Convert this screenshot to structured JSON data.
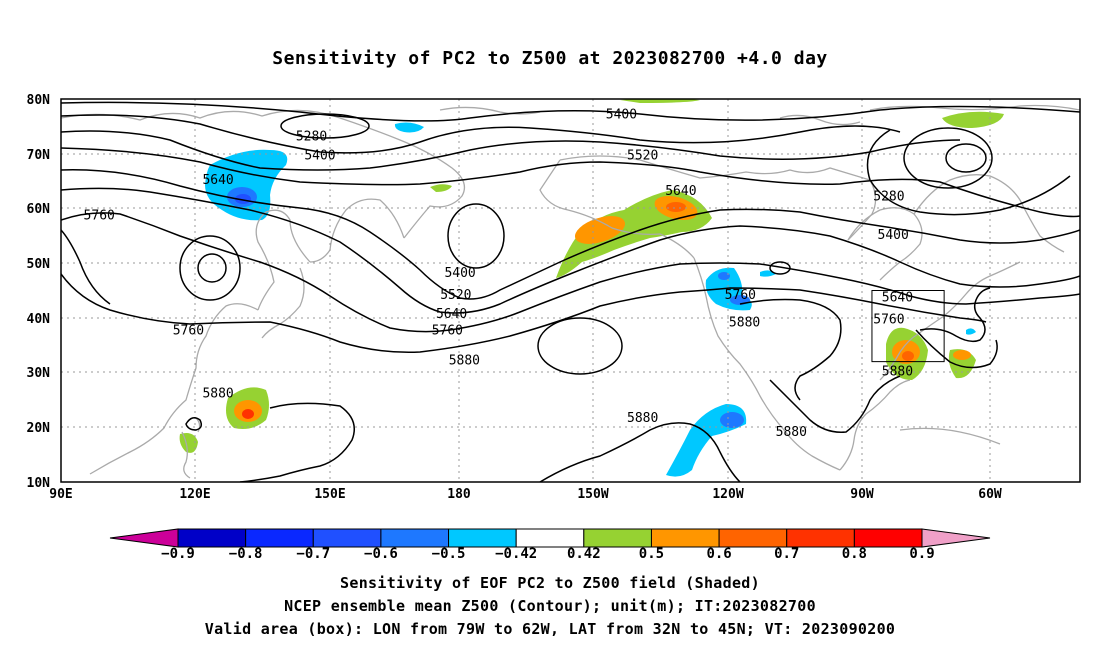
{
  "title": "Sensitivity of PC2 to Z500 at 2023082700 +4.0 day",
  "map": {
    "lon_labels": [
      "90E",
      "120E",
      "150E",
      "180",
      "150W",
      "120W",
      "90W",
      "60W"
    ],
    "lat_labels": [
      "80N",
      "70N",
      "60N",
      "50N",
      "40N",
      "30N",
      "20N",
      "10N"
    ],
    "contour_labels": [
      {
        "text": "5280",
        "lon": 149,
        "lat": 73
      },
      {
        "text": "5400",
        "lon": 151,
        "lat": 69.5
      },
      {
        "text": "5400",
        "lon": 222,
        "lat": 77
      },
      {
        "text": "5520",
        "lon": 227,
        "lat": 69.5
      },
      {
        "text": "5640",
        "lon": 127,
        "lat": 65
      },
      {
        "text": "5640",
        "lon": 236,
        "lat": 63
      },
      {
        "text": "5280",
        "lon": 285,
        "lat": 62
      },
      {
        "text": "5400",
        "lon": 286,
        "lat": 55
      },
      {
        "text": "5760",
        "lon": 99,
        "lat": 58.5
      },
      {
        "text": "5400",
        "lon": 184,
        "lat": 48
      },
      {
        "text": "5520",
        "lon": 183,
        "lat": 44
      },
      {
        "text": "5640",
        "lon": 182,
        "lat": 40.5
      },
      {
        "text": "5760",
        "lon": 181,
        "lat": 37.5
      },
      {
        "text": "5880",
        "lon": 185,
        "lat": 32
      },
      {
        "text": "5760",
        "lon": 120,
        "lat": 37.5
      },
      {
        "text": "5880",
        "lon": 127,
        "lat": 26
      },
      {
        "text": "5760",
        "lon": 250,
        "lat": 44
      },
      {
        "text": "5880",
        "lon": 251,
        "lat": 39
      },
      {
        "text": "5640",
        "lon": 287,
        "lat": 43.5
      },
      {
        "text": "5760",
        "lon": 285,
        "lat": 39.5
      },
      {
        "text": "5880",
        "lon": 287,
        "lat": 30
      },
      {
        "text": "5880",
        "lon": 227,
        "lat": 21.5
      },
      {
        "text": "5880",
        "lon": 262,
        "lat": 19
      }
    ],
    "valid_box": {
      "lon_min": 281,
      "lon_max": 298,
      "lat_min": 32,
      "lat_max": 45
    }
  },
  "colorbar": {
    "labels": [
      "-0.9",
      "-0.8",
      "-0.7",
      "-0.6",
      "-0.5",
      "-0.42",
      "0.42",
      "0.5",
      "0.6",
      "0.7",
      "0.8",
      "0.9"
    ],
    "colors": [
      "#0000c8",
      "#0a28ff",
      "#2050ff",
      "#1e78ff",
      "#00c8ff",
      "#ffffff",
      "#96d232",
      "#ff9600",
      "#ff6400",
      "#ff3200",
      "#ff0000"
    ],
    "low_color": "#cc0099",
    "high_color": "#f0a0c8"
  },
  "captions": {
    "line1": "Sensitivity of EOF PC2 to Z500 field (Shaded)",
    "line2": "NCEP ensemble mean Z500 (Contour); unit(m); IT:2023082700",
    "line3": "Valid area (box): LON from 79W to 62W, LAT from 32N to 45N; VT: 2023090200"
  }
}
